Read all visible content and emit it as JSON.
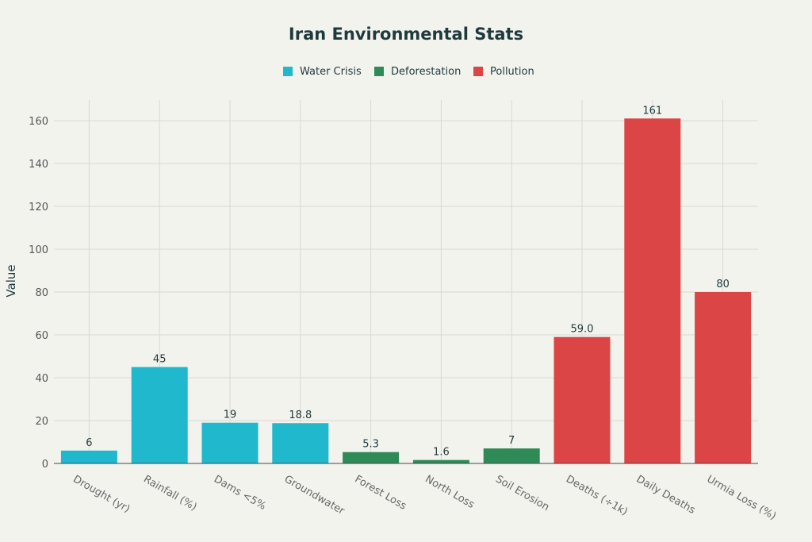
{
  "chart_data": {
    "type": "bar",
    "title": "Iran Environmental Stats",
    "xlabel": "",
    "ylabel": "Value",
    "ylim": [
      0,
      170
    ],
    "yticks": [
      0,
      20,
      40,
      60,
      80,
      100,
      120,
      140,
      160
    ],
    "legend_position": "top",
    "categories": [
      "Drought (yr)",
      "Rainfall (%)",
      "Dams <5%",
      "Groundwater",
      "Forest Loss",
      "North Loss",
      "Soil Erosion",
      "Deaths (÷1k)",
      "Daily Deaths",
      "Urmia Loss (%)"
    ],
    "values": [
      6,
      45,
      19,
      18.8,
      5.3,
      1.6,
      7,
      59.0,
      161,
      80
    ],
    "labels": [
      "6",
      "45",
      "19",
      "18.8",
      "5.3",
      "1.6",
      "7",
      "59.0",
      "161",
      "80"
    ],
    "group_of": [
      0,
      0,
      0,
      0,
      1,
      1,
      1,
      2,
      2,
      2
    ],
    "series": [
      {
        "name": "Water Crisis",
        "color": "#1fb8cd"
      },
      {
        "name": "Deforestation",
        "color": "#2e8b57"
      },
      {
        "name": "Pollution",
        "color": "#db4545"
      }
    ]
  }
}
